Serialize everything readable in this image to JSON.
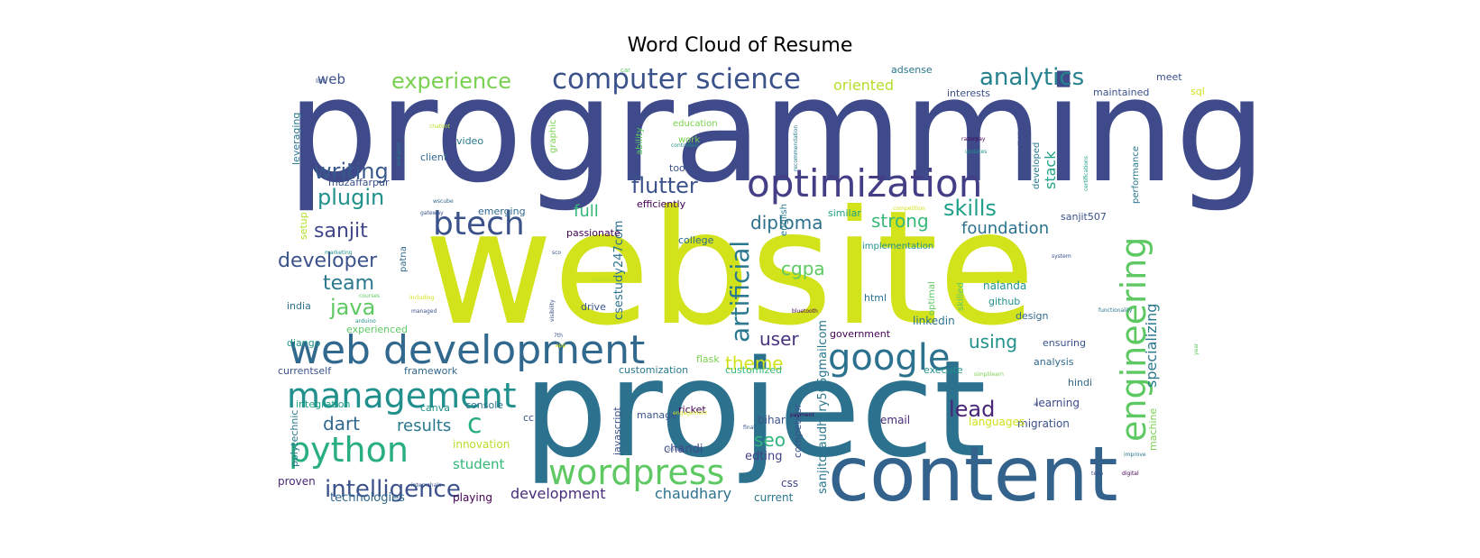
{
  "chart_data": {
    "type": "wordcloud",
    "title": "Word Cloud of Resume",
    "colormap": "viridis",
    "words": [
      {
        "text": "website",
        "weight": 1.0,
        "color": "#d2e21b"
      },
      {
        "text": "programming",
        "weight": 0.92,
        "color": "#3e4a89"
      },
      {
        "text": "project",
        "weight": 0.88,
        "color": "#2c728e"
      },
      {
        "text": "content",
        "weight": 0.6,
        "color": "#33628d"
      },
      {
        "text": "web development",
        "weight": 0.5,
        "color": "#31688e"
      },
      {
        "text": "optimization",
        "weight": 0.42,
        "color": "#433e85"
      },
      {
        "text": "management",
        "weight": 0.4,
        "color": "#21908d"
      },
      {
        "text": "engineering",
        "weight": 0.38,
        "color": "#5ec962"
      },
      {
        "text": "python",
        "weight": 0.38,
        "color": "#29af7f"
      },
      {
        "text": "wordpress",
        "weight": 0.38,
        "color": "#5ec962"
      },
      {
        "text": "google",
        "weight": 0.36,
        "color": "#2c728e"
      },
      {
        "text": "computer science",
        "weight": 0.32,
        "color": "#3b528b"
      },
      {
        "text": "btech",
        "weight": 0.32,
        "color": "#3b528b"
      },
      {
        "text": "intelligence",
        "weight": 0.28,
        "color": "#3b528b"
      },
      {
        "text": "artificial",
        "weight": 0.28,
        "color": "#2a788e"
      },
      {
        "text": "c",
        "weight": 0.28,
        "color": "#29af7f"
      },
      {
        "text": "analytics",
        "weight": 0.26,
        "color": "#26828e"
      },
      {
        "text": "flutter",
        "weight": 0.25,
        "color": "#3b528b"
      },
      {
        "text": "experience",
        "weight": 0.24,
        "color": "#7ad151"
      },
      {
        "text": "skills",
        "weight": 0.24,
        "color": "#1fa088"
      },
      {
        "text": "plugin",
        "weight": 0.24,
        "color": "#21918c"
      },
      {
        "text": "writing",
        "weight": 0.24,
        "color": "#38598c"
      },
      {
        "text": "sanjit",
        "weight": 0.24,
        "color": "#404688"
      },
      {
        "text": "diploma",
        "weight": 0.24,
        "color": "#2d708e"
      },
      {
        "text": "java",
        "weight": 0.24,
        "color": "#5ec962"
      },
      {
        "text": "team",
        "weight": 0.24,
        "color": "#2a788e"
      },
      {
        "text": "developer",
        "weight": 0.24,
        "color": "#3b528b"
      },
      {
        "text": "lead",
        "weight": 0.24,
        "color": "#482677"
      },
      {
        "text": "strong",
        "weight": 0.22,
        "color": "#37b878"
      },
      {
        "text": "cgpa",
        "weight": 0.22,
        "color": "#5ec962"
      },
      {
        "text": "theme",
        "weight": 0.22,
        "color": "#d2e21b"
      },
      {
        "text": "seo",
        "weight": 0.22,
        "color": "#2fb47c"
      },
      {
        "text": "user",
        "weight": 0.22,
        "color": "#46327e"
      },
      {
        "text": "using",
        "weight": 0.22,
        "color": "#21918c"
      },
      {
        "text": "dart",
        "weight": 0.22,
        "color": "#31688e"
      },
      {
        "text": "results",
        "weight": 0.22,
        "color": "#2a788e"
      },
      {
        "text": "full",
        "weight": 0.22,
        "color": "#35b779"
      },
      {
        "text": "foundation",
        "weight": 0.2,
        "color": "#2c728e"
      },
      {
        "text": "specializing",
        "weight": 0.18,
        "color": "#2a788e"
      },
      {
        "text": "stack",
        "weight": 0.18,
        "color": "#20a386"
      },
      {
        "text": "chaudhary",
        "weight": 0.18,
        "color": "#2c728e"
      },
      {
        "text": "development",
        "weight": 0.18,
        "color": "#472d7b"
      },
      {
        "text": "oriented",
        "weight": 0.16,
        "color": "#b5de2b"
      },
      {
        "text": "student",
        "weight": 0.16,
        "color": "#35b779"
      },
      {
        "text": "web",
        "weight": 0.16,
        "color": "#3b528b"
      },
      {
        "text": "sanjitchaudhary506gmailcom",
        "weight": 0.14,
        "color": "#2a788e"
      },
      {
        "text": "csestudy247com",
        "weight": 0.14,
        "color": "#2c728e"
      },
      {
        "text": "technologies",
        "weight": 0.13,
        "color": "#31688e"
      },
      {
        "text": "edting",
        "weight": 0.13,
        "color": "#414487"
      },
      {
        "text": "chandi",
        "weight": 0.13,
        "color": "#3e4a89"
      },
      {
        "text": "playing",
        "weight": 0.13,
        "color": "#440154"
      },
      {
        "text": "current",
        "weight": 0.13,
        "color": "#2a788e"
      },
      {
        "text": "css",
        "weight": 0.12,
        "color": "#414487"
      },
      {
        "text": "proven",
        "weight": 0.12,
        "color": "#482878"
      },
      {
        "text": "innovation",
        "weight": 0.12,
        "color": "#b5de2b"
      },
      {
        "text": "bihar",
        "weight": 0.12,
        "color": "#3b528b"
      },
      {
        "text": "email",
        "weight": 0.12,
        "color": "#472c7a"
      },
      {
        "text": "migration",
        "weight": 0.12,
        "color": "#3b528b"
      },
      {
        "text": "learning",
        "weight": 0.12,
        "color": "#3e4a89"
      },
      {
        "text": "languages",
        "weight": 0.12,
        "color": "#d2e21b"
      },
      {
        "text": "machine",
        "weight": 0.12,
        "color": "#7ad151"
      },
      {
        "text": "analysis",
        "weight": 0.12,
        "color": "#31688e"
      },
      {
        "text": "ensuring",
        "weight": 0.12,
        "color": "#3b528b"
      },
      {
        "text": "execute",
        "weight": 0.12,
        "color": "#21918c"
      },
      {
        "text": "hindi",
        "weight": 0.12,
        "color": "#31688e"
      },
      {
        "text": "government",
        "weight": 0.12,
        "color": "#440154"
      },
      {
        "text": "customized",
        "weight": 0.12,
        "color": "#35b779"
      },
      {
        "text": "customization",
        "weight": 0.12,
        "color": "#2a788e"
      },
      {
        "text": "framework",
        "weight": 0.12,
        "color": "#31688e"
      },
      {
        "text": "currentself",
        "weight": 0.12,
        "color": "#3b528b"
      },
      {
        "text": "integration",
        "weight": 0.12,
        "color": "#20a386"
      },
      {
        "text": "canva",
        "weight": 0.12,
        "color": "#21918c"
      },
      {
        "text": "console",
        "weight": 0.12,
        "color": "#2c728e"
      },
      {
        "text": "cc",
        "weight": 0.12,
        "color": "#3b528b"
      },
      {
        "text": "ricket",
        "weight": 0.12,
        "color": "#440154"
      },
      {
        "text": "manage",
        "weight": 0.12,
        "color": "#3b528b"
      },
      {
        "text": "javascript",
        "weight": 0.12,
        "color": "#3b528b"
      },
      {
        "text": "flask",
        "weight": 0.12,
        "color": "#7ad151"
      },
      {
        "text": "django",
        "weight": 0.12,
        "color": "#21918c"
      },
      {
        "text": "experienced",
        "weight": 0.12,
        "color": "#5ec962"
      },
      {
        "text": "india",
        "weight": 0.12,
        "color": "#2c728e"
      },
      {
        "text": "polytechnic",
        "weight": 0.12,
        "color": "#2a788e"
      },
      {
        "text": "competitor",
        "weight": 0.12,
        "color": "#3b528b"
      },
      {
        "text": "drive",
        "weight": 0.12,
        "color": "#3b528b"
      },
      {
        "text": "html",
        "weight": 0.12,
        "color": "#2c728e"
      },
      {
        "text": "linkedin",
        "weight": 0.12,
        "color": "#2c728e"
      },
      {
        "text": "optimal",
        "weight": 0.11,
        "color": "#5ec962"
      },
      {
        "text": "skilled",
        "weight": 0.11,
        "color": "#5ec962"
      },
      {
        "text": "nalanda",
        "weight": 0.12,
        "color": "#21918c"
      },
      {
        "text": "github",
        "weight": 0.12,
        "color": "#21918c"
      },
      {
        "text": "design",
        "weight": 0.12,
        "color": "#31688e"
      },
      {
        "text": "patna",
        "weight": 0.11,
        "color": "#31688e"
      },
      {
        "text": "college",
        "weight": 0.12,
        "color": "#31688e"
      },
      {
        "text": "implementation",
        "weight": 0.11,
        "color": "#21918c"
      },
      {
        "text": "sanjit507",
        "weight": 0.12,
        "color": "#3b528b"
      },
      {
        "text": "similar",
        "weight": 0.12,
        "color": "#20a386"
      },
      {
        "text": "english",
        "weight": 0.11,
        "color": "#2a788e"
      },
      {
        "text": "passionate",
        "weight": 0.12,
        "color": "#440154"
      },
      {
        "text": "efficiently",
        "weight": 0.12,
        "color": "#440154"
      },
      {
        "text": "emerging",
        "weight": 0.12,
        "color": "#31688e"
      },
      {
        "text": "muzaffarpur",
        "weight": 0.12,
        "color": "#3b528b"
      },
      {
        "text": "setup",
        "weight": 0.11,
        "color": "#b5de2b"
      },
      {
        "text": "leveraging",
        "weight": 0.12,
        "color": "#2a788e"
      },
      {
        "text": "client",
        "weight": 0.12,
        "color": "#31688e"
      },
      {
        "text": "video",
        "weight": 0.12,
        "color": "#2a788e"
      },
      {
        "text": "graphic",
        "weight": 0.11,
        "color": "#7ad151"
      },
      {
        "text": "ability",
        "weight": 0.11,
        "color": "#5ec962"
      },
      {
        "text": "work",
        "weight": 0.11,
        "color": "#7ad151"
      },
      {
        "text": "tools",
        "weight": 0.12,
        "color": "#3b528b"
      },
      {
        "text": "education",
        "weight": 0.11,
        "color": "#7ad151"
      },
      {
        "text": "performance",
        "weight": 0.11,
        "color": "#2a788e"
      },
      {
        "text": "developed",
        "weight": 0.11,
        "color": "#2a788e"
      },
      {
        "text": "run",
        "weight": 0.12,
        "color": "#3b528b"
      },
      {
        "text": "adsense",
        "weight": 0.11,
        "color": "#2a788e"
      },
      {
        "text": "interests",
        "weight": 0.11,
        "color": "#3b528b"
      },
      {
        "text": "maintained",
        "weight": 0.11,
        "color": "#3b528b"
      },
      {
        "text": "meet",
        "weight": 0.11,
        "color": "#3b528b"
      },
      {
        "text": "sql",
        "weight": 0.11,
        "color": "#d2e21b"
      },
      {
        "text": "list",
        "weight": 0.07,
        "color": "#3b528b"
      },
      {
        "text": "car",
        "weight": 0.07,
        "color": "#5ec962"
      },
      {
        "text": "chatbot",
        "weight": 0.06,
        "color": "#b5de2b"
      },
      {
        "text": "enhance",
        "weight": 0.06,
        "color": "#2a788e"
      },
      {
        "text": "side",
        "weight": 0.06,
        "color": "#3b528b"
      },
      {
        "text": "wscube",
        "weight": 0.06,
        "color": "#31688e"
      },
      {
        "text": "gateway",
        "weight": 0.06,
        "color": "#3b528b"
      },
      {
        "text": "controlled",
        "weight": 0.06,
        "color": "#21918c"
      },
      {
        "text": "recommendation",
        "weight": 0.06,
        "color": "#2a788e"
      },
      {
        "text": "razorpay",
        "weight": 0.06,
        "color": "#440154"
      },
      {
        "text": "updates",
        "weight": 0.06,
        "color": "#21918c"
      },
      {
        "text": "certifications",
        "weight": 0.06,
        "color": "#20a386"
      },
      {
        "text": "system",
        "weight": 0.06,
        "color": "#3b528b"
      },
      {
        "text": "marketing",
        "weight": 0.06,
        "color": "#21918c"
      },
      {
        "text": "sco",
        "weight": 0.06,
        "color": "#3b528b"
      },
      {
        "text": "semester",
        "weight": 0.06,
        "color": "#b5de2b"
      },
      {
        "text": "visibility",
        "weight": 0.06,
        "color": "#3b528b"
      },
      {
        "text": "courses",
        "weight": 0.06,
        "color": "#5ec962"
      },
      {
        "text": "including",
        "weight": 0.06,
        "color": "#d2e21b"
      },
      {
        "text": "managed",
        "weight": 0.06,
        "color": "#3b528b"
      },
      {
        "text": "arduino",
        "weight": 0.06,
        "color": "#21918c"
      },
      {
        "text": "7th",
        "weight": 0.06,
        "color": "#3b528b"
      },
      {
        "text": "app",
        "weight": 0.06,
        "color": "#d2e21b"
      },
      {
        "text": "bluetooth",
        "weight": 0.06,
        "color": "#440154"
      },
      {
        "text": "functionality",
        "weight": 0.06,
        "color": "#2a788e"
      },
      {
        "text": "year",
        "weight": 0.06,
        "color": "#5ec962"
      },
      {
        "text": "simplilearn",
        "weight": 0.06,
        "color": "#7ad151"
      },
      {
        "text": "ai",
        "weight": 0.06,
        "color": "#3b528b"
      },
      {
        "text": "engagement",
        "weight": 0.06,
        "color": "#d2e21b"
      },
      {
        "text": "payment",
        "weight": 0.06,
        "color": "#440154"
      },
      {
        "text": "final",
        "weight": 0.06,
        "color": "#3b528b"
      },
      {
        "text": "online",
        "weight": 0.06,
        "color": "#3b528b"
      },
      {
        "text": "improve",
        "weight": 0.06,
        "color": "#2a788e"
      },
      {
        "text": "tech",
        "weight": 0.06,
        "color": "#3b528b"
      },
      {
        "text": "digital",
        "weight": 0.06,
        "color": "#440154"
      },
      {
        "text": "internshala",
        "weight": 0.06,
        "color": "#3b528b"
      },
      {
        "text": "competition",
        "weight": 0.06,
        "color": "#d2e21b"
      }
    ]
  }
}
